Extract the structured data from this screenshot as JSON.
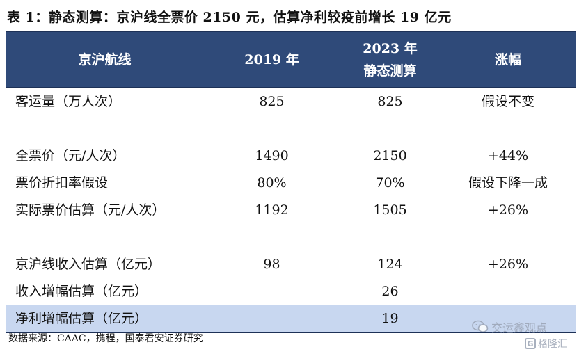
{
  "title": "表 1：静态测算：京沪线全票价 2150 元，估算净利较疫前增长 19 亿元",
  "header": {
    "col1": "京沪航线",
    "col2": "2019 年",
    "col3_line1": "2023 年",
    "col3_line2": "静态测算",
    "col4": "涨幅"
  },
  "rows": [
    {
      "label": "客运量（万人次）",
      "v2019": "825",
      "v2023": "825",
      "change": "假设不变"
    },
    {
      "label": "全票价（元/人次）",
      "v2019": "1490",
      "v2023": "2150",
      "change": "+44%"
    },
    {
      "label": "票价折扣率假设",
      "v2019": "80%",
      "v2023": "70%",
      "change": "假设下降一成"
    },
    {
      "label": "实际票价估算（元/人次）",
      "v2019": "1192",
      "v2023": "1505",
      "change": "+26%"
    },
    {
      "label": "京沪线收入估算（亿元）",
      "v2019": "98",
      "v2023": "124",
      "change": "+26%"
    },
    {
      "label": "收入增幅估算（亿元）",
      "v2019": "",
      "v2023": "26",
      "change": ""
    },
    {
      "label": "净利增幅估算（亿元）",
      "v2019": "",
      "v2023": "19",
      "change": ""
    }
  ],
  "source": "数据来源：CAAC，携程，国泰君安证券研究",
  "watermark": {
    "line1": "交运鑫观点",
    "line2": "格隆汇",
    "badge": "G",
    "icon": "wechat-icon"
  },
  "colors": {
    "header_bg": "#2f4a79",
    "highlight_row": "#c8d7f0"
  }
}
